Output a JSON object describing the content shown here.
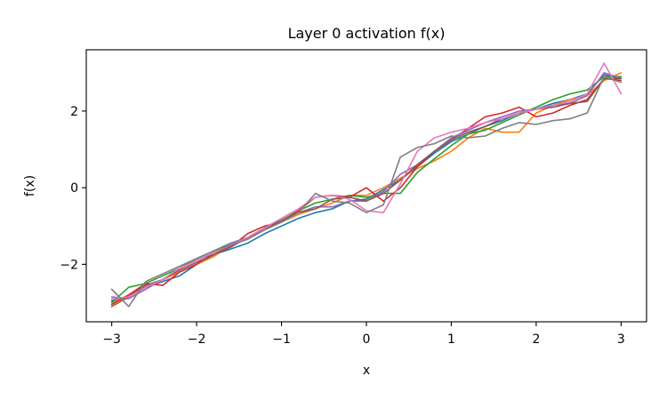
{
  "chart_data": {
    "type": "line",
    "title": "Layer 0 activation f(x)",
    "xlabel": "x",
    "ylabel": "f(x)",
    "xlim": [
      -3.3,
      3.3
    ],
    "ylim": [
      -3.5,
      3.6
    ],
    "xticks": [
      -3,
      -2,
      -1,
      0,
      1,
      2,
      3
    ],
    "xtick_labels": [
      "−3",
      "−2",
      "−1",
      "0",
      "1",
      "2",
      "3"
    ],
    "yticks": [
      -2,
      0,
      2
    ],
    "ytick_labels": [
      "−2",
      "0",
      "2"
    ],
    "grid": false,
    "legend": "none",
    "x": [
      -3.0,
      -2.8,
      -2.6,
      -2.4,
      -2.2,
      -2.0,
      -1.8,
      -1.6,
      -1.4,
      -1.2,
      -1.0,
      -0.8,
      -0.6,
      -0.4,
      -0.2,
      0.0,
      0.2,
      0.4,
      0.6,
      0.8,
      1.0,
      1.2,
      1.4,
      1.6,
      1.8,
      2.0,
      2.2,
      2.4,
      2.6,
      2.8,
      3.0
    ],
    "series": [
      {
        "color": "#1f77b4",
        "values": [
          -2.95,
          -2.85,
          -2.6,
          -2.45,
          -2.3,
          -2.0,
          -1.75,
          -1.6,
          -1.45,
          -1.2,
          -1.0,
          -0.8,
          -0.65,
          -0.55,
          -0.35,
          -0.3,
          -0.05,
          0.2,
          0.55,
          0.9,
          1.2,
          1.4,
          1.6,
          1.75,
          1.95,
          2.05,
          2.2,
          2.3,
          2.45,
          2.95,
          2.85
        ]
      },
      {
        "color": "#ff7f0e",
        "values": [
          -3.0,
          -2.8,
          -2.55,
          -2.4,
          -2.2,
          -2.0,
          -1.8,
          -1.5,
          -1.3,
          -1.1,
          -0.9,
          -0.7,
          -0.55,
          -0.4,
          -0.2,
          -0.2,
          0.0,
          0.25,
          0.5,
          0.7,
          0.95,
          1.3,
          1.55,
          1.45,
          1.45,
          1.95,
          2.15,
          2.3,
          2.4,
          2.8,
          3.0
        ]
      },
      {
        "color": "#2ca02c",
        "values": [
          -3.0,
          -2.6,
          -2.5,
          -2.3,
          -2.1,
          -1.85,
          -1.65,
          -1.45,
          -1.3,
          -1.05,
          -0.85,
          -0.6,
          -0.4,
          -0.3,
          -0.2,
          -0.25,
          -0.15,
          -0.15,
          0.4,
          0.75,
          1.1,
          1.4,
          1.5,
          1.7,
          1.9,
          2.1,
          2.3,
          2.45,
          2.55,
          2.9,
          2.9
        ]
      },
      {
        "color": "#d62728",
        "values": [
          -3.05,
          -2.8,
          -2.5,
          -2.55,
          -2.2,
          -2.0,
          -1.7,
          -1.55,
          -1.2,
          -1.0,
          -0.9,
          -0.6,
          -0.25,
          -0.2,
          -0.25,
          0.0,
          -0.35,
          0.0,
          0.55,
          0.95,
          1.25,
          1.55,
          1.85,
          1.95,
          2.1,
          1.85,
          1.95,
          2.15,
          2.3,
          2.85,
          2.8
        ]
      },
      {
        "color": "#9467bd",
        "values": [
          -2.85,
          -2.9,
          -2.65,
          -2.4,
          -2.1,
          -1.9,
          -1.7,
          -1.45,
          -1.3,
          -1.05,
          -0.9,
          -0.65,
          -0.5,
          -0.5,
          -0.35,
          -0.35,
          -0.1,
          0.35,
          0.6,
          0.95,
          1.3,
          1.5,
          1.7,
          1.85,
          2.0,
          2.05,
          2.15,
          2.2,
          2.4,
          3.0,
          2.85
        ]
      },
      {
        "color": "#8c564b",
        "values": [
          -3.1,
          -2.85,
          -2.55,
          -2.4,
          -2.15,
          -1.95,
          -1.75,
          -1.55,
          -1.3,
          -1.1,
          -0.85,
          -0.65,
          -0.55,
          -0.3,
          -0.25,
          -0.35,
          -0.15,
          0.2,
          0.6,
          0.95,
          1.25,
          1.45,
          1.6,
          1.8,
          1.95,
          2.05,
          2.1,
          2.2,
          2.25,
          2.85,
          2.85
        ]
      },
      {
        "color": "#e377c2",
        "values": [
          -2.9,
          -2.85,
          -2.6,
          -2.4,
          -2.1,
          -1.9,
          -1.7,
          -1.5,
          -1.3,
          -1.05,
          -0.8,
          -0.55,
          -0.25,
          -0.2,
          -0.3,
          -0.6,
          -0.65,
          0.1,
          0.95,
          1.3,
          1.45,
          1.55,
          1.7,
          1.8,
          1.95,
          2.05,
          2.15,
          2.25,
          2.45,
          3.25,
          2.45
        ]
      },
      {
        "color": "#7f7f7f",
        "values": [
          -2.65,
          -3.1,
          -2.45,
          -2.25,
          -2.05,
          -1.85,
          -1.65,
          -1.5,
          -1.35,
          -1.1,
          -0.9,
          -0.65,
          -0.15,
          -0.35,
          -0.4,
          -0.65,
          -0.45,
          0.8,
          1.05,
          1.15,
          1.35,
          1.3,
          1.35,
          1.55,
          1.7,
          1.65,
          1.75,
          1.8,
          1.95,
          2.9,
          2.75
        ]
      }
    ]
  }
}
